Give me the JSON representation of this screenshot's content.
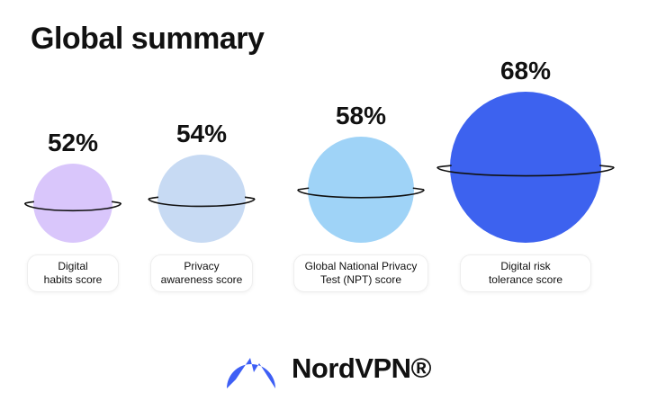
{
  "chart_data": {
    "type": "planet",
    "title": "Global summary",
    "categories": [
      "Digital\nhabits score",
      "Privacy\nawareness score",
      "Global National Privacy\nTest (NPT) score",
      "Digital risk\ntolerance score"
    ],
    "values": [
      52,
      54,
      58,
      68
    ],
    "value_labels": [
      "52%",
      "54%",
      "58%",
      "68%"
    ],
    "colors": [
      "#d9c6fb",
      "#c7daf3",
      "#9fd3f7",
      "#3d62ef"
    ]
  },
  "brand": "NordVPN®"
}
